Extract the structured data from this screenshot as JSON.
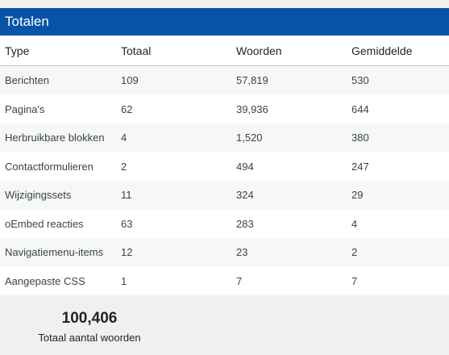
{
  "panel": {
    "title": "Totalen"
  },
  "table": {
    "headers": [
      "Type",
      "Totaal",
      "Woorden",
      "Gemiddelde"
    ],
    "rows": [
      [
        "Berichten",
        "109",
        "57,819",
        "530"
      ],
      [
        "Pagina's",
        "62",
        "39,936",
        "644"
      ],
      [
        "Herbruikbare blokken",
        "4",
        "1,520",
        "380"
      ],
      [
        "Contactformulieren",
        "2",
        "494",
        "247"
      ],
      [
        "Wijzigingssets",
        "11",
        "324",
        "29"
      ],
      [
        "oEmbed reacties",
        "63",
        "283",
        "4"
      ],
      [
        "Navigatiemenu-items",
        "12",
        "23",
        "2"
      ],
      [
        "Aangepaste CSS",
        "1",
        "7",
        "7"
      ]
    ]
  },
  "summary": {
    "total_words": "100,406",
    "total_words_label": "Totaal aantal woorden"
  },
  "colors": {
    "header_bg": "#0753a8",
    "row_alt_bg": "#f6f7f7",
    "page_bg": "#f0f0f1"
  }
}
